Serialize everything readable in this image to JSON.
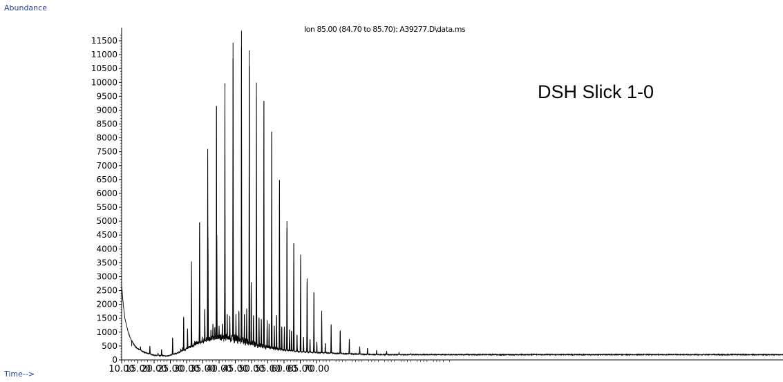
{
  "chart_data": {
    "type": "line",
    "ylabel": "Abundance",
    "xlabel": "Time-->",
    "title": "Ion 85.00 (84.70 to 85.70): A39277.D\\data.ms",
    "annotation": "DSH Slick 1-0",
    "xlim": [
      10.0,
      88.0
    ],
    "ylim": [
      0,
      12000
    ],
    "yticks": [
      0,
      500,
      1000,
      1500,
      2000,
      2500,
      3000,
      3500,
      4000,
      4500,
      5000,
      5500,
      6000,
      6500,
      7000,
      7500,
      8000,
      8500,
      9000,
      9500,
      10000,
      10500,
      11000,
      11500
    ],
    "ytick_labels": [
      "0",
      "500",
      "1000",
      "1500",
      "2000",
      "2500",
      "3000",
      "3500",
      "4000",
      "4500",
      "5000",
      "5500",
      "6000",
      "6500",
      "7000",
      "7500",
      "8000",
      "8500",
      "9000",
      "9500",
      "10000",
      "10500",
      "11000",
      "11500"
    ],
    "xticks": [
      10,
      15,
      20,
      25,
      30,
      35,
      40,
      45,
      50,
      55,
      60,
      65,
      70
    ],
    "xtick_labels": [
      "10.00",
      "15.00",
      "20.00",
      "25.00",
      "30.00",
      "35.00",
      "40.00",
      "45.00",
      "50.00",
      "55.00",
      "60.00",
      "65.00",
      "70.00"
    ],
    "grid": false,
    "series": [
      {
        "baseline": [
          [
            10.0,
            2700
          ],
          [
            10.5,
            2000
          ],
          [
            11.0,
            1500
          ],
          [
            12.0,
            1000
          ],
          [
            13.0,
            700
          ],
          [
            14.0,
            520
          ],
          [
            15.0,
            400
          ],
          [
            17.0,
            270
          ],
          [
            20.0,
            170
          ],
          [
            24.0,
            140
          ],
          [
            27.0,
            230
          ],
          [
            30.0,
            380
          ],
          [
            33.0,
            560
          ],
          [
            36.0,
            680
          ],
          [
            40.0,
            760
          ],
          [
            44.0,
            720
          ],
          [
            48.0,
            600
          ],
          [
            52.0,
            480
          ],
          [
            56.0,
            400
          ],
          [
            60.0,
            340
          ],
          [
            65.0,
            290
          ],
          [
            70.0,
            260
          ],
          [
            75.0,
            240
          ],
          [
            80.0,
            220
          ],
          [
            85.0,
            200
          ],
          [
            88.0,
            190
          ]
        ],
        "peaks": [
          [
            13.1,
            500
          ],
          [
            14.3,
            420
          ],
          [
            15.8,
            480
          ],
          [
            18.7,
            500
          ],
          [
            21.2,
            250
          ],
          [
            22.3,
            380
          ],
          [
            25.7,
            800
          ],
          [
            28.2,
            400
          ],
          [
            28.8,
            450
          ],
          [
            29.1,
            1550
          ],
          [
            30.3,
            1130
          ],
          [
            31.5,
            3550
          ],
          [
            32.5,
            670
          ],
          [
            33.2,
            680
          ],
          [
            34.0,
            4950
          ],
          [
            34.8,
            830
          ],
          [
            35.6,
            1830
          ],
          [
            36.5,
            7600
          ],
          [
            36.6,
            4400
          ],
          [
            37.5,
            1080
          ],
          [
            38.1,
            1300
          ],
          [
            38.7,
            1180
          ],
          [
            39.2,
            9150
          ],
          [
            39.3,
            4500
          ],
          [
            40.0,
            1230
          ],
          [
            41.0,
            1300
          ],
          [
            41.7,
            2260
          ],
          [
            41.8,
            9970
          ],
          [
            42.5,
            1650
          ],
          [
            43.3,
            1590
          ],
          [
            44.3,
            11430
          ],
          [
            45.2,
            1650
          ],
          [
            46.1,
            1770
          ],
          [
            46.9,
            11860
          ],
          [
            47.8,
            1640
          ],
          [
            48.5,
            1850
          ],
          [
            49.3,
            11150
          ],
          [
            49.9,
            2800
          ],
          [
            50.6,
            1600
          ],
          [
            51.5,
            9990
          ],
          [
            52.3,
            1530
          ],
          [
            53.0,
            1470
          ],
          [
            53.8,
            9330
          ],
          [
            54.8,
            1430
          ],
          [
            55.4,
            1300
          ],
          [
            56.2,
            8220
          ],
          [
            57.0,
            1230
          ],
          [
            57.7,
            1620
          ],
          [
            58.6,
            6480
          ],
          [
            59.3,
            1200
          ],
          [
            60.1,
            1200
          ],
          [
            60.9,
            5000
          ],
          [
            61.7,
            1100
          ],
          [
            62.3,
            1050
          ],
          [
            63.0,
            4200
          ],
          [
            64.0,
            900
          ],
          [
            65.1,
            3790
          ],
          [
            66.0,
            820
          ],
          [
            67.1,
            2930
          ],
          [
            68.0,
            740
          ],
          [
            69.2,
            2430
          ],
          [
            70.1,
            650
          ],
          [
            71.6,
            1770
          ],
          [
            72.7,
            600
          ],
          [
            74.5,
            1280
          ],
          [
            77.3,
            1060
          ],
          [
            80.1,
            750
          ],
          [
            83.3,
            480
          ],
          [
            85.7,
            420
          ],
          [
            88.5,
            350
          ],
          [
            91.6,
            320
          ],
          [
            95.4,
            270
          ],
          [
            99.0,
            230
          ]
        ]
      }
    ]
  }
}
